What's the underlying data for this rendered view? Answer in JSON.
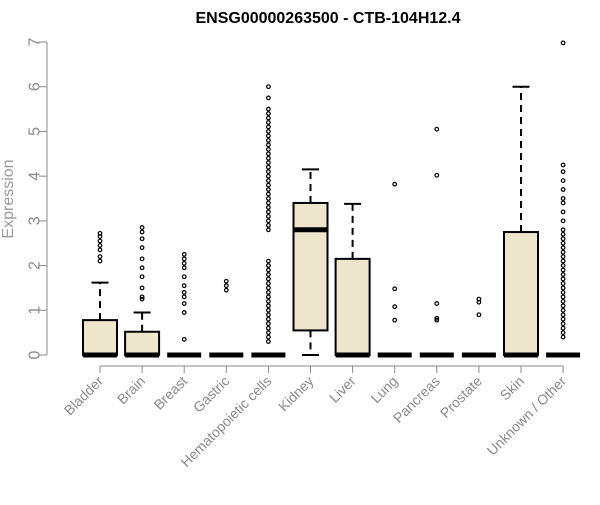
{
  "chart_data": {
    "type": "boxplot",
    "title": "ENSG00000263500 - CTB-104H12.4",
    "xlabel": "",
    "ylabel": "Expression",
    "ylim": [
      0,
      7
    ],
    "yticks": [
      0,
      1,
      2,
      3,
      4,
      5,
      6,
      7
    ],
    "grid": false,
    "colors": {
      "box_fill": "#ede5cc",
      "box_stroke": "#000000",
      "axis": "#8a8a8a",
      "outlier_stroke": "#000000"
    },
    "categories": [
      "Bladder",
      "Brain",
      "Breast",
      "Gastric",
      "Hematopoietic cells",
      "Kidney",
      "Liver",
      "Lung",
      "Pancreas",
      "Prostate",
      "Skin",
      "Unknown / Other"
    ],
    "boxes": [
      {
        "category": "Bladder",
        "min": 0,
        "q1": 0,
        "median": 0,
        "q3": 0.78,
        "max": 1.62,
        "outliers": [
          2.1,
          2.2,
          2.35,
          2.45,
          2.55,
          2.65,
          2.72
        ]
      },
      {
        "category": "Brain",
        "min": 0,
        "q1": 0,
        "median": 0,
        "q3": 0.52,
        "max": 0.95,
        "outliers": [
          1.25,
          1.3,
          1.5,
          1.75,
          1.95,
          2.15,
          2.4,
          2.6,
          2.75,
          2.85
        ]
      },
      {
        "category": "Breast",
        "min": 0,
        "q1": 0,
        "median": 0,
        "q3": 0,
        "max": 0,
        "outliers": [
          0.35,
          0.95,
          1.15,
          1.3,
          1.4,
          1.55,
          1.75,
          1.95,
          2.05,
          2.15,
          2.25
        ]
      },
      {
        "category": "Gastric",
        "min": 0,
        "q1": 0,
        "median": 0,
        "q3": 0,
        "max": 0,
        "outliers": [
          1.45,
          1.55,
          1.65
        ]
      },
      {
        "category": "Hematopoietic cells",
        "min": 0,
        "q1": 0,
        "median": 0,
        "q3": 0,
        "max": 0,
        "outliers": [
          0.3,
          0.4,
          0.5,
          0.6,
          0.7,
          0.8,
          0.9,
          1.0,
          1.1,
          1.2,
          1.3,
          1.4,
          1.5,
          1.6,
          1.7,
          1.8,
          1.9,
          2.0,
          2.1,
          2.8,
          2.9,
          3.0,
          3.1,
          3.2,
          3.3,
          3.4,
          3.5,
          3.6,
          3.7,
          3.8,
          3.9,
          4.0,
          4.1,
          4.2,
          4.3,
          4.4,
          4.5,
          4.6,
          4.7,
          4.8,
          4.9,
          5.0,
          5.1,
          5.2,
          5.3,
          5.4,
          5.5,
          5.75,
          6.0
        ]
      },
      {
        "category": "Kidney",
        "min": 0,
        "q1": 0.55,
        "median": 2.8,
        "q3": 3.4,
        "max": 4.15,
        "outliers": []
      },
      {
        "category": "Liver",
        "min": 0,
        "q1": 0,
        "median": 0,
        "q3": 2.15,
        "max": 3.38,
        "outliers": []
      },
      {
        "category": "Lung",
        "min": 0,
        "q1": 0,
        "median": 0,
        "q3": 0,
        "max": 0,
        "outliers": [
          0.78,
          1.08,
          1.48,
          3.82
        ]
      },
      {
        "category": "Pancreas",
        "min": 0,
        "q1": 0,
        "median": 0,
        "q3": 0,
        "max": 0,
        "outliers": [
          0.78,
          0.82,
          1.15,
          4.02,
          5.05
        ]
      },
      {
        "category": "Prostate",
        "min": 0,
        "q1": 0,
        "median": 0,
        "q3": 0,
        "max": 0,
        "outliers": [
          0.9,
          1.18,
          1.25
        ]
      },
      {
        "category": "Skin",
        "min": 0,
        "q1": 0,
        "median": 0,
        "q3": 2.75,
        "max": 6.0,
        "outliers": []
      },
      {
        "category": "Unknown / Other",
        "min": 0,
        "q1": 0,
        "median": 0,
        "q3": 0,
        "max": 0,
        "outliers": [
          0.4,
          0.5,
          0.6,
          0.7,
          0.8,
          0.9,
          1.0,
          1.1,
          1.2,
          1.3,
          1.4,
          1.5,
          1.6,
          1.7,
          1.8,
          1.9,
          2.0,
          2.1,
          2.2,
          2.3,
          2.4,
          2.5,
          2.6,
          2.7,
          2.8,
          3.0,
          3.2,
          3.4,
          3.5,
          3.7,
          3.9,
          4.1,
          4.25,
          6.98
        ]
      }
    ]
  }
}
